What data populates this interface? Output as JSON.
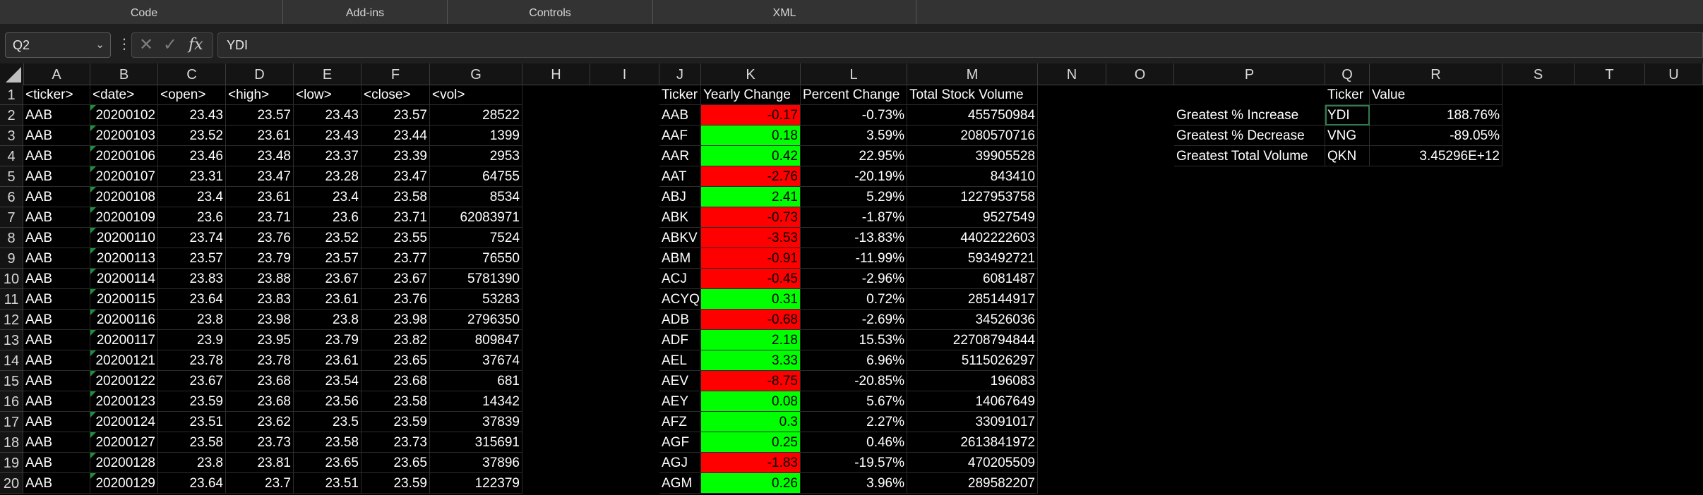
{
  "ribbon": {
    "groups": [
      "Code",
      "Add-ins",
      "Controls",
      "XML"
    ]
  },
  "formula_bar": {
    "name_box": "Q2",
    "formula": "YDI",
    "fx_label": "fx"
  },
  "columns": [
    "A",
    "B",
    "C",
    "D",
    "E",
    "F",
    "G",
    "H",
    "I",
    "J",
    "K",
    "L",
    "M",
    "N",
    "O",
    "P",
    "Q",
    "R",
    "S",
    "T",
    "U"
  ],
  "rows": [
    "1",
    "2",
    "3",
    "4",
    "5",
    "6",
    "7",
    "8",
    "9",
    "10",
    "11",
    "12",
    "13",
    "14",
    "15",
    "16",
    "17",
    "18",
    "19",
    "20"
  ],
  "raw_table": {
    "headers": [
      "<ticker>",
      "<date>",
      "<open>",
      "<high>",
      "<low>",
      "<close>",
      "<vol>"
    ],
    "rows": [
      [
        "AAB",
        "20200102",
        "23.43",
        "23.57",
        "23.43",
        "23.57",
        "28522"
      ],
      [
        "AAB",
        "20200103",
        "23.52",
        "23.61",
        "23.43",
        "23.44",
        "1399"
      ],
      [
        "AAB",
        "20200106",
        "23.46",
        "23.48",
        "23.37",
        "23.39",
        "2953"
      ],
      [
        "AAB",
        "20200107",
        "23.31",
        "23.47",
        "23.28",
        "23.47",
        "64755"
      ],
      [
        "AAB",
        "20200108",
        "23.4",
        "23.61",
        "23.4",
        "23.58",
        "8534"
      ],
      [
        "AAB",
        "20200109",
        "23.6",
        "23.71",
        "23.6",
        "23.71",
        "62083971"
      ],
      [
        "AAB",
        "20200110",
        "23.74",
        "23.76",
        "23.52",
        "23.55",
        "7524"
      ],
      [
        "AAB",
        "20200113",
        "23.57",
        "23.79",
        "23.57",
        "23.77",
        "76550"
      ],
      [
        "AAB",
        "20200114",
        "23.83",
        "23.88",
        "23.67",
        "23.67",
        "5781390"
      ],
      [
        "AAB",
        "20200115",
        "23.64",
        "23.83",
        "23.61",
        "23.76",
        "53283"
      ],
      [
        "AAB",
        "20200116",
        "23.8",
        "23.98",
        "23.8",
        "23.98",
        "2796350"
      ],
      [
        "AAB",
        "20200117",
        "23.9",
        "23.95",
        "23.79",
        "23.82",
        "809847"
      ],
      [
        "AAB",
        "20200121",
        "23.78",
        "23.78",
        "23.61",
        "23.65",
        "37674"
      ],
      [
        "AAB",
        "20200122",
        "23.67",
        "23.68",
        "23.54",
        "23.68",
        "681"
      ],
      [
        "AAB",
        "20200123",
        "23.59",
        "23.68",
        "23.56",
        "23.58",
        "14342"
      ],
      [
        "AAB",
        "20200124",
        "23.51",
        "23.62",
        "23.5",
        "23.59",
        "37839"
      ],
      [
        "AAB",
        "20200127",
        "23.58",
        "23.73",
        "23.58",
        "23.73",
        "315691"
      ],
      [
        "AAB",
        "20200128",
        "23.8",
        "23.81",
        "23.65",
        "23.65",
        "37896"
      ],
      [
        "AAB",
        "20200129",
        "23.64",
        "23.7",
        "23.51",
        "23.59",
        "122379"
      ]
    ]
  },
  "summary_table": {
    "headers": [
      "Ticker",
      "Yearly Change",
      "Percent Change",
      "Total Stock Volume"
    ],
    "rows": [
      [
        "AAB",
        "-0.17",
        "-0.73%",
        "455750984"
      ],
      [
        "AAF",
        "0.18",
        "3.59%",
        "2080570716"
      ],
      [
        "AAR",
        "0.42",
        "22.95%",
        "39905528"
      ],
      [
        "AAT",
        "-2.76",
        "-20.19%",
        "843410"
      ],
      [
        "ABJ",
        "2.41",
        "5.29%",
        "1227953758"
      ],
      [
        "ABK",
        "-0.73",
        "-1.87%",
        "9527549"
      ],
      [
        "ABKV",
        "-3.53",
        "-13.83%",
        "4402222603"
      ],
      [
        "ABM",
        "-0.91",
        "-11.99%",
        "593492721"
      ],
      [
        "ACJ",
        "-0.45",
        "-2.96%",
        "6081487"
      ],
      [
        "ACYQ",
        "0.31",
        "0.72%",
        "285144917"
      ],
      [
        "ADB",
        "-0.68",
        "-2.69%",
        "34526036"
      ],
      [
        "ADF",
        "2.18",
        "15.53%",
        "22708794844"
      ],
      [
        "AEL",
        "3.33",
        "6.96%",
        "5115026297"
      ],
      [
        "AEV",
        "-8.75",
        "-20.85%",
        "196083"
      ],
      [
        "AEY",
        "0.08",
        "5.67%",
        "14067649"
      ],
      [
        "AFZ",
        "0.3",
        "2.27%",
        "33091017"
      ],
      [
        "AGF",
        "0.25",
        "0.46%",
        "2613841972"
      ],
      [
        "AGJ",
        "-1.83",
        "-19.57%",
        "470205509"
      ],
      [
        "AGM",
        "0.26",
        "3.96%",
        "289582207"
      ]
    ]
  },
  "greatest_table": {
    "headers": [
      "Ticker",
      "Value"
    ],
    "rows": [
      [
        "Greatest % Increase",
        "YDI",
        "188.76%"
      ],
      [
        "Greatest % Decrease",
        "VNG",
        "-89.05%"
      ],
      [
        "Greatest Total Volume",
        "QKN",
        "3.45296E+12"
      ]
    ]
  },
  "colors": {
    "negative_fill": "#ff0000",
    "positive_fill": "#00ff00",
    "sheet_background": "#000000"
  }
}
